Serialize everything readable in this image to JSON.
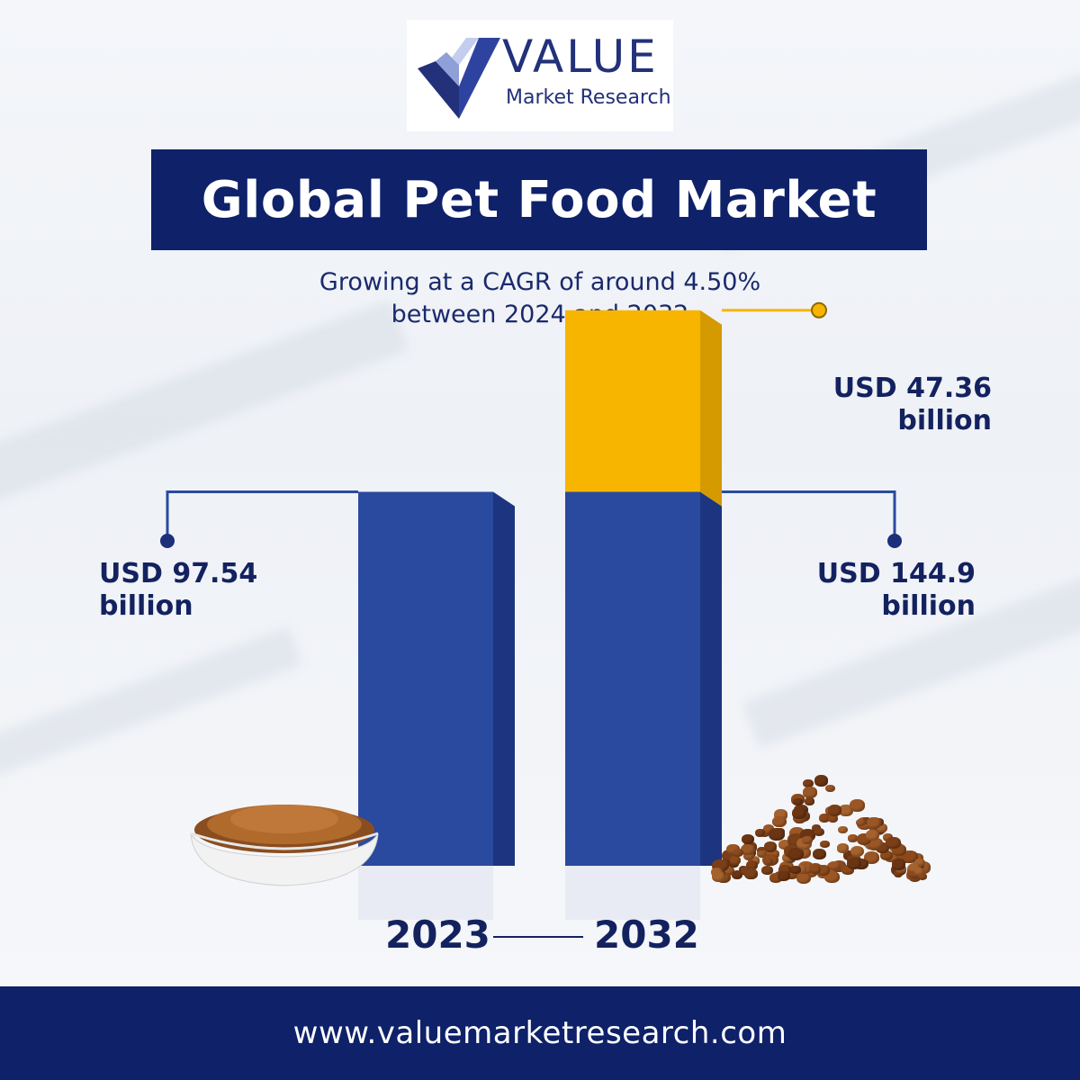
{
  "logo": {
    "word": "VALUE",
    "sub": "Market Research"
  },
  "title": "Global Pet Food Market",
  "subtitle": {
    "line1": "Growing at a CAGR of around 4.50%",
    "line2": "between 2024 and 2032"
  },
  "chart_data": {
    "type": "bar",
    "categories": [
      "2023",
      "2032"
    ],
    "series": [
      {
        "values": [
          97.54,
          97.54
        ],
        "color": "#2a4a9f"
      },
      {
        "values": [
          0,
          47.36
        ],
        "color": "#f7b500"
      }
    ],
    "labels": {
      "bar2023": [
        "USD 97.54",
        "billion"
      ],
      "bar2032_total": [
        "USD 144.9",
        "billion"
      ],
      "bar2032_increment": [
        "USD 47.36",
        "billion"
      ]
    },
    "unit": "USD billion"
  },
  "years": {
    "start": "2023",
    "end": "2032"
  },
  "footer": {
    "url": "www.valuemarketresearch.com"
  },
  "colors": {
    "navy": "#0e2169",
    "bar_blue": "#2a4a9f",
    "bar_gold": "#f7b500",
    "text": "#13225f"
  }
}
